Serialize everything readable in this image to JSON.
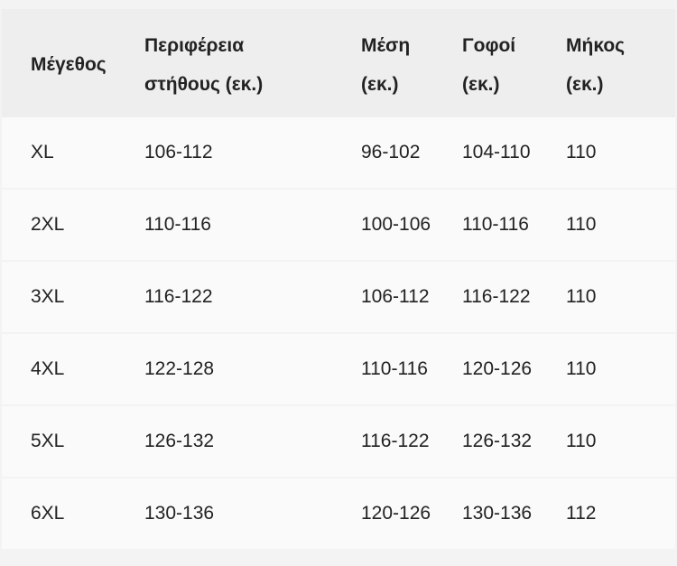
{
  "table": {
    "headers": [
      [
        "Μέγεθος"
      ],
      [
        "Περιφέρεια",
        "στήθους (εκ.)"
      ],
      [
        "Μέση",
        "(εκ.)"
      ],
      [
        "Γοφοί",
        "(εκ.)"
      ],
      [
        "Μήκος",
        "(εκ.)"
      ]
    ],
    "rows": [
      [
        "XL",
        "106-112",
        "96-102",
        "104-110",
        "110"
      ],
      [
        "2XL",
        "110-116",
        "100-106",
        "110-116",
        "110"
      ],
      [
        "3XL",
        "116-122",
        "106-112",
        "116-122",
        "110"
      ],
      [
        "4XL",
        "122-128",
        "110-116",
        "120-126",
        "110"
      ],
      [
        "5XL",
        "126-132",
        "116-122",
        "126-132",
        "110"
      ],
      [
        "6XL",
        "130-136",
        "120-126",
        "130-136",
        "112"
      ]
    ]
  }
}
